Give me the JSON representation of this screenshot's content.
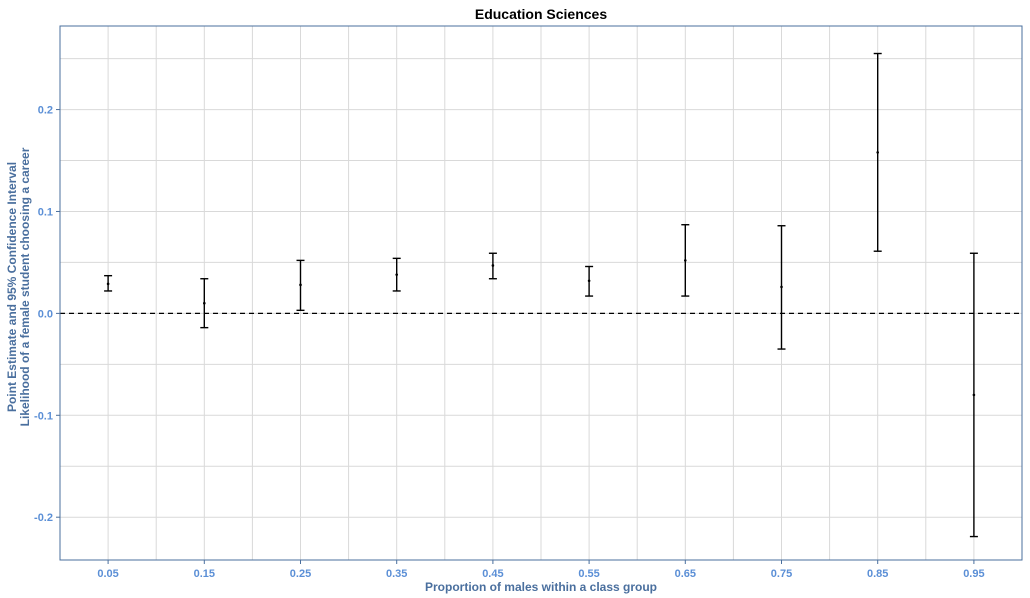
{
  "chart_data": {
    "type": "errorbar",
    "title": "Education Sciences",
    "xlabel": "Proportion of males within a class group",
    "ylabel_line1": "Point Estimate and 95% Confidence Interval",
    "ylabel_line2": "Likelihood of a female student choosing a career",
    "x_tick_labels": [
      "0.05",
      "0.15",
      "0.25",
      "0.35",
      "0.45",
      "0.55",
      "0.65",
      "0.75",
      "0.85",
      "0.95"
    ],
    "y_tick_labels": [
      "0.2",
      "0.1",
      "0.0",
      "-0.1",
      "-0.2"
    ],
    "xlim": [
      0.0,
      1.0
    ],
    "ylim": [
      -0.242,
      0.282
    ],
    "reference_line_y": 0.0,
    "grid": true,
    "points": [
      {
        "x": 0.05,
        "estimate": 0.029,
        "lower": 0.022,
        "upper": 0.037
      },
      {
        "x": 0.15,
        "estimate": 0.01,
        "lower": -0.014,
        "upper": 0.034
      },
      {
        "x": 0.25,
        "estimate": 0.028,
        "lower": 0.003,
        "upper": 0.052
      },
      {
        "x": 0.35,
        "estimate": 0.038,
        "lower": 0.022,
        "upper": 0.054
      },
      {
        "x": 0.45,
        "estimate": 0.047,
        "lower": 0.034,
        "upper": 0.059
      },
      {
        "x": 0.55,
        "estimate": 0.032,
        "lower": 0.017,
        "upper": 0.046
      },
      {
        "x": 0.65,
        "estimate": 0.052,
        "lower": 0.017,
        "upper": 0.087
      },
      {
        "x": 0.75,
        "estimate": 0.026,
        "lower": -0.035,
        "upper": 0.086
      },
      {
        "x": 0.85,
        "estimate": 0.158,
        "lower": 0.061,
        "upper": 0.255
      },
      {
        "x": 0.95,
        "estimate": -0.08,
        "lower": -0.219,
        "upper": 0.059
      }
    ]
  },
  "colors": {
    "axis": "#4a6f9e",
    "grid": "#d9d9d9",
    "tick_label": "#5b8fd6",
    "series": "#000000"
  }
}
